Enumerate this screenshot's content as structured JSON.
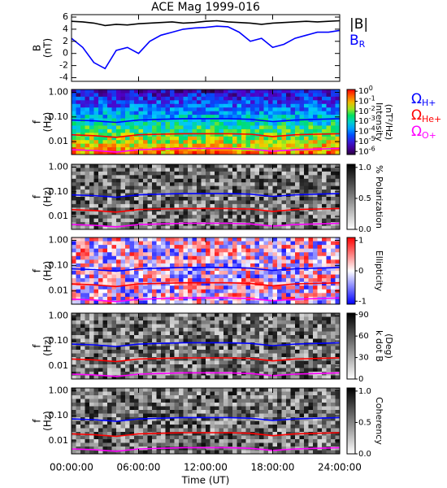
{
  "chart_data": [
    {
      "type": "line",
      "title": "ACE Mag 1999-016",
      "ylabel": [
        "B",
        "(nT)"
      ],
      "legend": true,
      "x": [
        0,
        1,
        2,
        3,
        4,
        5,
        6,
        7,
        8,
        9,
        10,
        11,
        12,
        13,
        14,
        15,
        16,
        17,
        18,
        19,
        20,
        21,
        22,
        23,
        24
      ],
      "ylim": [
        -4.6,
        6.4
      ],
      "yticks": [
        -4,
        -2,
        0,
        2,
        4,
        6
      ],
      "series": [
        {
          "name": "|B|",
          "color": "#000000",
          "values": [
            5.3,
            5.2,
            5.0,
            4.6,
            4.8,
            4.7,
            4.9,
            5.0,
            5.1,
            5.2,
            5.0,
            5.1,
            5.3,
            5.4,
            5.2,
            5.1,
            5.0,
            4.8,
            5.0,
            5.1,
            5.2,
            5.3,
            5.2,
            5.3,
            5.4
          ]
        },
        {
          "name": "B",
          "subscript": "R",
          "color": "#0000ff",
          "values": [
            2.5,
            1.0,
            -1.5,
            -2.5,
            0.5,
            1.0,
            0.0,
            2.0,
            3.0,
            3.5,
            4.0,
            4.2,
            4.3,
            4.5,
            4.4,
            3.5,
            2.0,
            2.5,
            1.0,
            1.5,
            2.5,
            3.0,
            3.5,
            3.5,
            3.8
          ]
        }
      ]
    },
    {
      "type": "spectrogram",
      "ylabel": [
        "f",
        "(Hz)"
      ],
      "log_y": true,
      "colormap": "rainbow",
      "legend": true,
      "x": [
        0,
        2,
        4,
        6,
        8,
        10,
        12,
        14,
        16,
        18,
        20,
        22,
        24
      ],
      "ylim": [
        0.003,
        1.3
      ],
      "yticks": [
        {
          "value": 1,
          "label": "1.00"
        },
        {
          "value": 0.1,
          "label": "0.10"
        },
        {
          "value": 0.01,
          "label": "0.01"
        }
      ],
      "colorbar": {
        "label": [
          "Intensity",
          "(nT²/Hz)"
        ],
        "log": true,
        "lim": [
          5e-07,
          1.5
        ],
        "ticks": [
          {
            "value": 1,
            "label": "10",
            "exponent": "0"
          },
          {
            "value": 0.1,
            "label": "10",
            "exponent": "-1"
          },
          {
            "value": 0.01,
            "label": "10",
            "exponent": "-2"
          },
          {
            "value": 0.001,
            "label": "10",
            "exponent": "-3"
          },
          {
            "value": 0.0001,
            "label": "10",
            "exponent": "-4"
          },
          {
            "value": 1e-05,
            "label": "10",
            "exponent": "-5"
          },
          {
            "value": 1e-06,
            "label": "10",
            "exponent": "-6"
          }
        ]
      },
      "series": [
        {
          "name": "Ω",
          "subscript": "H+",
          "color": "#0000ff",
          "values": [
            0.075,
            0.07,
            0.06,
            0.075,
            0.08,
            0.085,
            0.085,
            0.085,
            0.08,
            0.065,
            0.075,
            0.08,
            0.085
          ]
        },
        {
          "name": "Ω",
          "subscript": "He+",
          "color": "#ff0000",
          "values": [
            0.019,
            0.0175,
            0.015,
            0.019,
            0.02,
            0.021,
            0.021,
            0.021,
            0.02,
            0.016,
            0.019,
            0.02,
            0.021
          ]
        },
        {
          "name": "Ω",
          "subscript": "O+",
          "color": "#ff00ff",
          "values": [
            0.0047,
            0.0044,
            0.0038,
            0.0047,
            0.005,
            0.0053,
            0.0053,
            0.0053,
            0.005,
            0.0041,
            0.0047,
            0.005,
            0.0053
          ]
        }
      ]
    },
    {
      "type": "spectrogram",
      "ylabel": [
        "f",
        "(Hz)"
      ],
      "log_y": true,
      "colormap": "gray",
      "x": [
        0,
        2,
        4,
        6,
        8,
        10,
        12,
        14,
        16,
        18,
        20,
        22,
        24
      ],
      "ylim": [
        0.003,
        1.3
      ],
      "yticks": [
        {
          "value": 1,
          "label": "1.00"
        },
        {
          "value": 0.1,
          "label": "0.10"
        },
        {
          "value": 0.01,
          "label": "0.01"
        }
      ],
      "colorbar": {
        "label": [
          "% Polarization"
        ],
        "lim": [
          0,
          1.05
        ],
        "ticks": [
          {
            "value": 0,
            "label": "0.0"
          },
          {
            "value": 0.5,
            "label": "0.5"
          },
          {
            "value": 1,
            "label": "1.0"
          }
        ]
      },
      "series": [
        {
          "color": "#0000ff",
          "values": [
            0.075,
            0.07,
            0.06,
            0.075,
            0.08,
            0.085,
            0.085,
            0.085,
            0.08,
            0.065,
            0.075,
            0.08,
            0.085
          ]
        },
        {
          "color": "#ff0000",
          "values": [
            0.019,
            0.0175,
            0.015,
            0.019,
            0.02,
            0.021,
            0.021,
            0.021,
            0.02,
            0.016,
            0.019,
            0.02,
            0.021
          ]
        },
        {
          "color": "#ff00ff",
          "values": [
            0.0047,
            0.0044,
            0.0038,
            0.0047,
            0.005,
            0.0053,
            0.0053,
            0.0053,
            0.005,
            0.0041,
            0.0047,
            0.005,
            0.0053
          ]
        }
      ]
    },
    {
      "type": "spectrogram",
      "ylabel": [
        "f",
        "(Hz)"
      ],
      "log_y": true,
      "colormap": "bwr",
      "x": [
        0,
        2,
        4,
        6,
        8,
        10,
        12,
        14,
        16,
        18,
        20,
        22,
        24
      ],
      "ylim": [
        0.003,
        1.3
      ],
      "yticks": [
        {
          "value": 1,
          "label": "1.00"
        },
        {
          "value": 0.1,
          "label": "0.10"
        },
        {
          "value": 0.01,
          "label": "0.01"
        }
      ],
      "colorbar": {
        "label": [
          "Ellipticity"
        ],
        "lim": [
          -1.1,
          1.1
        ],
        "ticks": [
          -1,
          0,
          1
        ]
      },
      "series": [
        {
          "color": "#0000ff",
          "values": [
            0.075,
            0.07,
            0.06,
            0.075,
            0.08,
            0.085,
            0.085,
            0.085,
            0.08,
            0.065,
            0.075,
            0.08,
            0.085
          ]
        },
        {
          "color": "#ff0000",
          "values": [
            0.019,
            0.0175,
            0.015,
            0.019,
            0.02,
            0.021,
            0.021,
            0.021,
            0.02,
            0.016,
            0.019,
            0.02,
            0.021
          ]
        },
        {
          "color": "#ff00ff",
          "values": [
            0.0047,
            0.0044,
            0.0038,
            0.0047,
            0.005,
            0.0053,
            0.0053,
            0.0053,
            0.005,
            0.0041,
            0.0047,
            0.005,
            0.0053
          ]
        }
      ]
    },
    {
      "type": "spectrogram",
      "ylabel": [
        "f",
        "(Hz)"
      ],
      "log_y": true,
      "colormap": "gray",
      "x": [
        0,
        2,
        4,
        6,
        8,
        10,
        12,
        14,
        16,
        18,
        20,
        22,
        24
      ],
      "ylim": [
        0.003,
        1.3
      ],
      "yticks": [
        {
          "value": 1,
          "label": "1.00"
        },
        {
          "value": 0.1,
          "label": "0.10"
        },
        {
          "value": 0.01,
          "label": "0.01"
        }
      ],
      "colorbar": {
        "label": [
          "k dot B",
          "(Deg)"
        ],
        "lim": [
          0,
          92
        ],
        "ticks": [
          0,
          30,
          60,
          90
        ]
      },
      "series": [
        {
          "color": "#0000ff",
          "values": [
            0.075,
            0.07,
            0.06,
            0.075,
            0.08,
            0.085,
            0.085,
            0.085,
            0.08,
            0.065,
            0.075,
            0.08,
            0.085
          ]
        },
        {
          "color": "#ff0000",
          "values": [
            0.019,
            0.0175,
            0.015,
            0.019,
            0.02,
            0.021,
            0.021,
            0.021,
            0.02,
            0.016,
            0.019,
            0.02,
            0.021
          ]
        },
        {
          "color": "#ff00ff",
          "values": [
            0.0047,
            0.0044,
            0.0038,
            0.0047,
            0.005,
            0.0053,
            0.0053,
            0.0053,
            0.005,
            0.0041,
            0.0047,
            0.005,
            0.0053
          ]
        }
      ]
    },
    {
      "type": "spectrogram",
      "ylabel": [
        "f",
        "(Hz)"
      ],
      "log_y": true,
      "colormap": "gray",
      "x": [
        0,
        2,
        4,
        6,
        8,
        10,
        12,
        14,
        16,
        18,
        20,
        22,
        24
      ],
      "ylim": [
        0.003,
        1.3
      ],
      "yticks": [
        {
          "value": 1,
          "label": "1.00"
        },
        {
          "value": 0.1,
          "label": "0.10"
        },
        {
          "value": 0.01,
          "label": "0.01"
        }
      ],
      "colorbar": {
        "label": [
          "Coherency"
        ],
        "lim": [
          0,
          1.05
        ],
        "ticks": [
          {
            "value": 0,
            "label": "0.0"
          },
          {
            "value": 0.5,
            "label": "0.5"
          },
          {
            "value": 1,
            "label": "1.0"
          }
        ]
      },
      "xlabel": "Time (UT)",
      "xlim": [
        0,
        24
      ],
      "xticks": [
        {
          "value": 0,
          "label": "00:00:00"
        },
        {
          "value": 6,
          "label": "06:00:00"
        },
        {
          "value": 12,
          "label": "12:00:00"
        },
        {
          "value": 18,
          "label": "18:00:00"
        },
        {
          "value": 24,
          "label": "24:00:00"
        }
      ],
      "series": [
        {
          "color": "#0000ff",
          "values": [
            0.075,
            0.07,
            0.06,
            0.075,
            0.08,
            0.085,
            0.085,
            0.085,
            0.08,
            0.065,
            0.075,
            0.08,
            0.085
          ]
        },
        {
          "color": "#ff0000",
          "values": [
            0.019,
            0.0175,
            0.015,
            0.019,
            0.02,
            0.021,
            0.021,
            0.021,
            0.02,
            0.016,
            0.019,
            0.02,
            0.021
          ]
        },
        {
          "color": "#ff00ff",
          "values": [
            0.0047,
            0.0044,
            0.0038,
            0.0047,
            0.005,
            0.0053,
            0.0053,
            0.0053,
            0.005,
            0.0041,
            0.0047,
            0.005,
            0.0053
          ]
        }
      ]
    }
  ]
}
